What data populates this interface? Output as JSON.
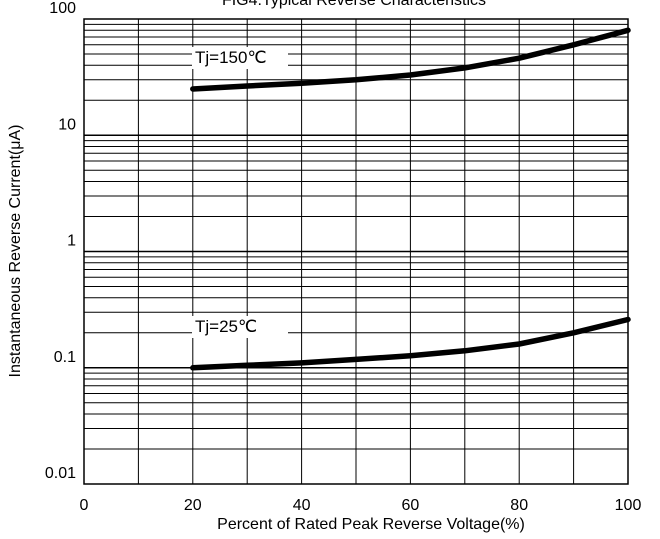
{
  "chart_data": {
    "type": "line",
    "title": "FIG4:Typical Reverse Characteristics",
    "xlabel": "Percent of Rated Peak Reverse Voltage(%)",
    "ylabel": "Instantaneous Reverse Current(μA)",
    "xlim": [
      0,
      100
    ],
    "ylim": [
      0.01,
      100
    ],
    "yscale": "log",
    "grid": true,
    "x_ticks": [
      {
        "value": 0,
        "label": "0"
      },
      {
        "value": 20,
        "label": "20"
      },
      {
        "value": 40,
        "label": "40"
      },
      {
        "value": 60,
        "label": "60"
      },
      {
        "value": 80,
        "label": "80"
      },
      {
        "value": 100,
        "label": "100"
      }
    ],
    "y_ticks": [
      {
        "value": 100,
        "label": "100"
      },
      {
        "value": 10,
        "label": "10"
      },
      {
        "value": 1,
        "label": "1"
      },
      {
        "value": 0.1,
        "label": "0.1"
      },
      {
        "value": 0.01,
        "label": "0.01"
      }
    ],
    "series": [
      {
        "name": "Tj=150℃",
        "x": [
          20,
          30,
          40,
          50,
          60,
          70,
          80,
          90,
          100
        ],
        "y": [
          25,
          26.5,
          28,
          30,
          33,
          38,
          46,
          60,
          80
        ]
      },
      {
        "name": "Tj=25℃",
        "x": [
          20,
          30,
          40,
          50,
          60,
          70,
          80,
          90,
          100
        ],
        "y": [
          0.1,
          0.105,
          0.11,
          0.118,
          0.127,
          0.14,
          0.16,
          0.2,
          0.26
        ]
      }
    ]
  }
}
